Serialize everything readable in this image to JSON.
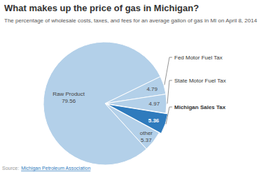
{
  "chart_data": {
    "type": "pie",
    "title": "What makes up the price of gas in Michigan?",
    "subtitle": "The percentage of wholesale costs, taxes, and fees for an average gallon of gas in MI on April 8, 2014",
    "categories": [
      "Fed Motor Fuel Tax",
      "State Motor Fuel Tax",
      "Michigan Sales Tax",
      "other",
      "Raw Product"
    ],
    "values": [
      4.79,
      4.97,
      5.36,
      5.37,
      79.56
    ],
    "colors": [
      "#b3d0e9",
      "#b3d0e9",
      "#2f7bbd",
      "#b3d0e9",
      "#b3d0e9"
    ],
    "data_labels": true,
    "source_label": "Source:",
    "source": "Michigan Petroleum Association"
  }
}
